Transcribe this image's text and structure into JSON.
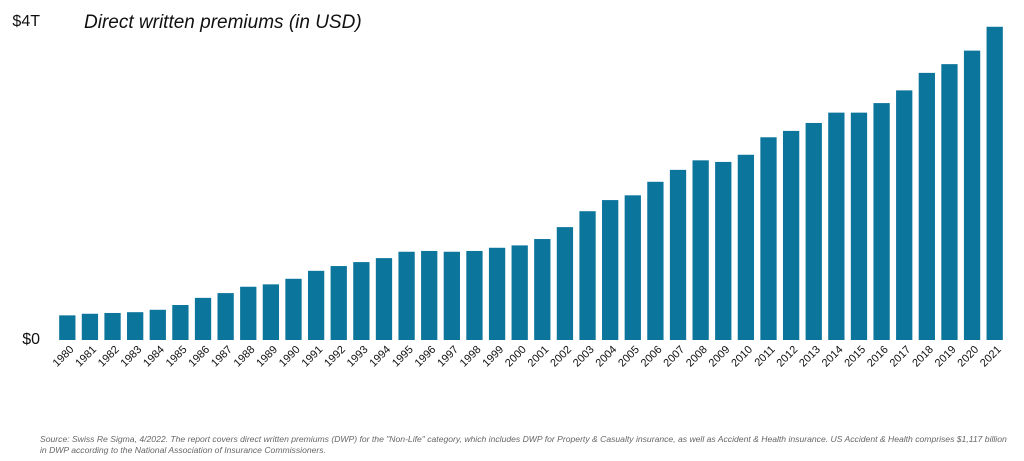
{
  "chart_data": {
    "type": "bar",
    "title": "Direct written premiums (in USD)",
    "categories": [
      "1980",
      "1981",
      "1982",
      "1983",
      "1984",
      "1985",
      "1986",
      "1987",
      "1988",
      "1989",
      "1990",
      "1991",
      "1992",
      "1993",
      "1994",
      "1995",
      "1996",
      "1997",
      "1998",
      "1999",
      "2000",
      "2001",
      "2002",
      "2003",
      "2004",
      "2005",
      "2006",
      "2007",
      "2008",
      "2009",
      "2010",
      "2011",
      "2012",
      "2013",
      "2014",
      "2015",
      "2016",
      "2017",
      "2018",
      "2019",
      "2020",
      "2021"
    ],
    "values": [
      0.31,
      0.33,
      0.34,
      0.35,
      0.38,
      0.44,
      0.53,
      0.59,
      0.67,
      0.7,
      0.77,
      0.87,
      0.93,
      0.98,
      1.03,
      1.11,
      1.12,
      1.11,
      1.12,
      1.16,
      1.19,
      1.27,
      1.42,
      1.62,
      1.76,
      1.82,
      1.99,
      2.14,
      2.26,
      2.24,
      2.33,
      2.55,
      2.63,
      2.73,
      2.86,
      2.86,
      2.98,
      3.14,
      3.36,
      3.47,
      3.64,
      3.94
    ],
    "color": "#0b759c",
    "ylim": [
      0,
      4
    ],
    "yticks": [
      {
        "value": 0,
        "label": "$0"
      },
      {
        "value": 4,
        "label": "$4T"
      }
    ],
    "grid": false,
    "source": "Source: Swiss Re Sigma, 4/2022. The report covers direct written premiums (DWP) for the \"Non-Life\" category, which includes DWP for Property & Casualty insurance, as well as Accident & Health insurance. US Accident & Health comprises $1,117 billion in DWP according to the National Association of Insurance Commissioners."
  }
}
